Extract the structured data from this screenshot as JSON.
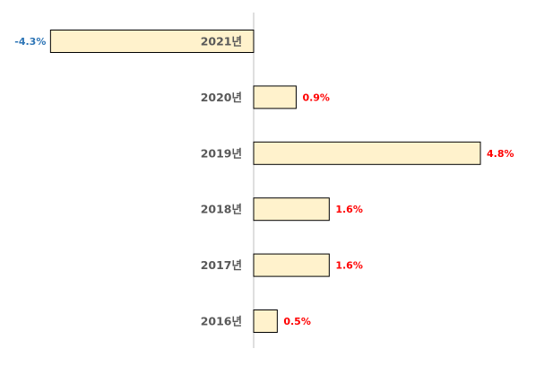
{
  "chart_data": {
    "type": "bar",
    "orientation": "horizontal",
    "categories": [
      "2021년",
      "2020년",
      "2019년",
      "2018년",
      "2017년",
      "2016년"
    ],
    "values": [
      -4.3,
      0.9,
      4.8,
      1.6,
      1.6,
      0.5
    ],
    "value_labels": [
      "-4.3%",
      "0.9%",
      "4.8%",
      "1.6%",
      "1.6%",
      "0.5%"
    ],
    "unit": "%",
    "title": "",
    "xlabel": "",
    "ylabel": "",
    "grid": false,
    "legend": "none"
  },
  "colors": {
    "bar_fill": "#fff2cc",
    "bar_stroke": "#000000",
    "axis": "#bfbfbf",
    "category_text": "#595959",
    "positive_label": "#ff0000",
    "negative_label": "#2e75b6"
  }
}
